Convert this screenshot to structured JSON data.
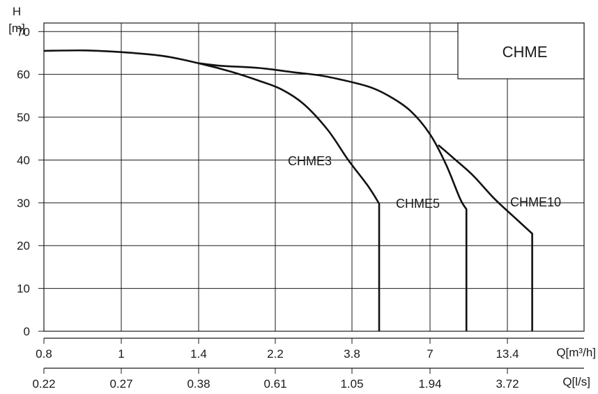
{
  "chart_data": {
    "type": "line",
    "title": "CHME",
    "ylabel": "H",
    "yunit": "[m]",
    "ylim": [
      0,
      72
    ],
    "yticks": [
      "0",
      "10",
      "20",
      "30",
      "40",
      "50",
      "60",
      "70"
    ],
    "xlabel": "Q[m³/h]",
    "xticks": [
      "0.8",
      "1",
      "1.4",
      "2.2",
      "3.8",
      "7",
      "13.4"
    ],
    "x2label": "Q[l/s]",
    "x2ticks": [
      "0.22",
      "0.27",
      "0.38",
      "0.61",
      "1.05",
      "1.94",
      "3.72"
    ],
    "grid": true,
    "series": [
      {
        "name": "CHME3",
        "points": [
          [
            0.8,
            65.5
          ],
          [
            0.9,
            65.6
          ],
          [
            1.0,
            65.2
          ],
          [
            1.2,
            64.3
          ],
          [
            1.4,
            62.6
          ],
          [
            1.7,
            60.6
          ],
          [
            2.0,
            58.5
          ],
          [
            2.3,
            56.5
          ],
          [
            2.7,
            53.0
          ],
          [
            3.2,
            47.0
          ],
          [
            3.7,
            40.0
          ],
          [
            4.3,
            34.0
          ],
          [
            4.7,
            29.8
          ],
          [
            4.7,
            0
          ]
        ]
      },
      {
        "name": "CHME5",
        "points": [
          [
            1.4,
            62.6
          ],
          [
            1.6,
            62.0
          ],
          [
            2.0,
            61.5
          ],
          [
            2.5,
            60.5
          ],
          [
            3.0,
            59.8
          ],
          [
            3.5,
            58.8
          ],
          [
            4.3,
            57.2
          ],
          [
            5.0,
            55.2
          ],
          [
            6.0,
            51.5
          ],
          [
            7.0,
            46.0
          ],
          [
            8.0,
            39.0
          ],
          [
            9.0,
            31.0
          ],
          [
            9.5,
            28.5
          ],
          [
            9.5,
            0
          ]
        ]
      },
      {
        "name": "CHME10",
        "points": [
          [
            7.5,
            43.5
          ],
          [
            8.5,
            40.5
          ],
          [
            10.0,
            36.5
          ],
          [
            12.0,
            31.0
          ],
          [
            14.0,
            27.0
          ],
          [
            16.5,
            22.8
          ],
          [
            16.5,
            0
          ]
        ]
      }
    ]
  }
}
